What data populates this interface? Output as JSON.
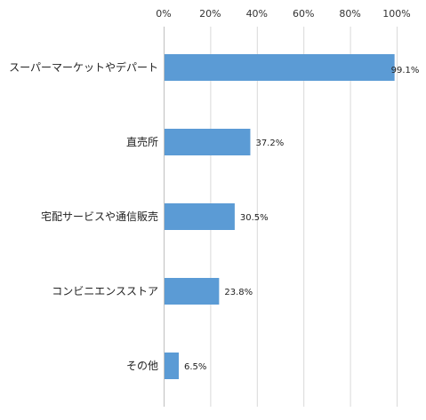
{
  "chart_data": {
    "type": "bar",
    "orientation": "horizontal",
    "categories": [
      "スーパーマーケットやデパート",
      "直売所",
      "宅配サービスや通信販売",
      "コンビニエンスストア",
      "その他"
    ],
    "values": [
      99.1,
      37.2,
      30.5,
      23.8,
      6.5
    ],
    "value_labels": [
      "99.1%",
      "37.2%",
      "30.5%",
      "23.8%",
      "6.5%"
    ],
    "xlim": [
      0,
      100
    ],
    "ticks": [
      0,
      20,
      40,
      60,
      80,
      100
    ],
    "tick_labels": [
      "0%",
      "20%",
      "40%",
      "60%",
      "80%",
      "100%"
    ],
    "axis_position": "top",
    "grid": true,
    "title": "",
    "xlabel": "",
    "ylabel": "",
    "bar_color": "#5b9bd5"
  }
}
